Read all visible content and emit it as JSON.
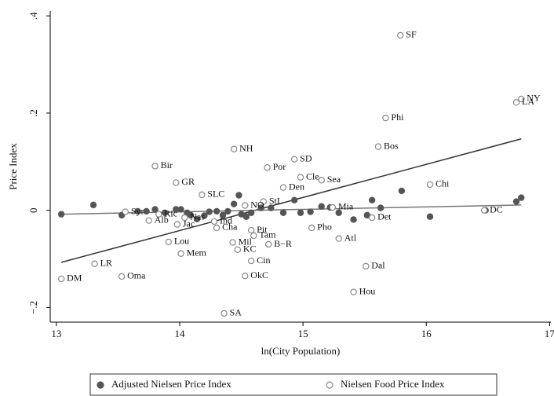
{
  "chart_data": {
    "type": "scatter",
    "x_label": "ln(City Population)",
    "y_label": "Price Index",
    "xlim": [
      12.95,
      17.01
    ],
    "ylim": [
      -0.23,
      0.41
    ],
    "xticks": [
      13,
      14,
      15,
      16,
      17
    ],
    "yticks": [
      {
        "value": -0.2,
        "label": "−.2"
      },
      0,
      {
        "value": 0.2,
        "label": ".2"
      },
      {
        "value": 0.4,
        "label": ".4"
      }
    ],
    "series": [
      {
        "name": "Adjusted Nielsen Price Index",
        "color": "#555555",
        "filled": true,
        "x": [
          13.04,
          13.3,
          13.53,
          13.66,
          13.73,
          13.8,
          13.88,
          13.97,
          14.01,
          14.06,
          14.09,
          14.14,
          14.2,
          14.24,
          14.3,
          14.35,
          14.39,
          14.44,
          14.48,
          14.5,
          14.54,
          14.58,
          14.66,
          14.74,
          14.84,
          14.93,
          14.98,
          15.06,
          15.15,
          15.22,
          15.29,
          15.41,
          15.52,
          15.56,
          15.63,
          15.8,
          16.03,
          16.48,
          16.73,
          16.77
        ],
        "values": [
          -0.008,
          0.011,
          -0.01,
          -0.002,
          -0.002,
          0.002,
          -0.005,
          0.002,
          0.002,
          -0.005,
          -0.01,
          -0.018,
          -0.011,
          -0.003,
          -0.002,
          -0.01,
          -0.002,
          0.013,
          0.031,
          -0.008,
          -0.013,
          -0.005,
          0.005,
          0.005,
          -0.005,
          0.021,
          -0.005,
          -0.003,
          0.008,
          0.006,
          -0.005,
          -0.019,
          -0.01,
          0.021,
          0.005,
          0.04,
          -0.013,
          0.0,
          0.018,
          0.026
        ]
      },
      {
        "name": "Nielsen Food Price Index",
        "color": "#888888",
        "filled": false,
        "labels": [
          "SF",
          "NY",
          "LA",
          "Phi",
          "Bos",
          "NH",
          "SD",
          "Bir",
          "Por",
          "Cle",
          "Sea",
          "Chi",
          "GR",
          "Den",
          "SLC",
          "StL",
          "NO",
          "Mia",
          "Syr",
          "DC",
          "Ric",
          "Nas",
          "Alb",
          "Det",
          "Jac",
          "Ind",
          "Cha",
          "Pho",
          "Pit",
          "Tam",
          "Atl",
          "Lou",
          "Mil",
          "B−R",
          "KC",
          "Mem",
          "Cin",
          "LR",
          "Dal",
          "OkC",
          "Oma",
          "DM",
          "Hou",
          "SA"
        ],
        "x": [
          15.79,
          16.77,
          16.73,
          15.67,
          15.61,
          14.44,
          14.93,
          13.8,
          14.71,
          14.98,
          15.15,
          16.03,
          13.97,
          14.84,
          14.18,
          14.68,
          14.53,
          15.24,
          13.56,
          16.47,
          13.83,
          14.04,
          13.75,
          15.56,
          13.98,
          14.28,
          14.3,
          15.07,
          14.58,
          14.6,
          15.29,
          13.91,
          14.43,
          14.72,
          14.47,
          14.01,
          14.58,
          13.31,
          15.51,
          14.53,
          13.53,
          13.04,
          15.41,
          14.36
        ],
        "values": [
          0.36,
          0.229,
          0.222,
          0.19,
          0.131,
          0.126,
          0.105,
          0.091,
          0.088,
          0.068,
          0.062,
          0.053,
          0.057,
          0.047,
          0.032,
          0.018,
          0.01,
          0.006,
          -0.003,
          0.0,
          -0.008,
          -0.015,
          -0.021,
          -0.015,
          -0.029,
          -0.023,
          -0.036,
          -0.036,
          -0.041,
          -0.052,
          -0.058,
          -0.065,
          -0.066,
          -0.07,
          -0.081,
          -0.089,
          -0.104,
          -0.11,
          -0.115,
          -0.135,
          -0.136,
          -0.141,
          -0.168,
          -0.212
        ]
      }
    ],
    "fit_lines": [
      {
        "color": "#333333",
        "x": [
          13.04,
          16.77
        ],
        "values": [
          -0.107,
          0.147
        ]
      },
      {
        "color": "#777777",
        "x": [
          13.04,
          16.77
        ],
        "values": [
          -0.008,
          0.011
        ]
      }
    ]
  }
}
